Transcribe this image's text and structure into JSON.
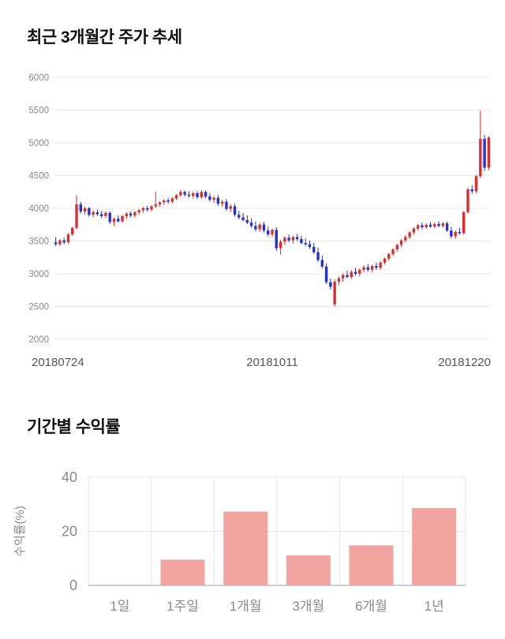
{
  "chart_data": [
    {
      "type": "candlestick",
      "title": "최근 3개월간 주가 추세",
      "x_labels": [
        "20180724",
        "20181011",
        "20181220"
      ],
      "y_ticks": [
        2000,
        2500,
        3000,
        3500,
        4000,
        4500,
        5000,
        5500,
        6000
      ],
      "ylim": [
        2000,
        6000
      ],
      "colors": {
        "up": "#dd2e2e",
        "down": "#2431cf",
        "grid": "#e8e8e8",
        "tick_text": "#8a8a8a",
        "axis_text": "#555555"
      },
      "candles": [
        [
          3480,
          3560,
          3420,
          3450
        ],
        [
          3450,
          3530,
          3420,
          3510
        ],
        [
          3510,
          3550,
          3450,
          3480
        ],
        [
          3480,
          3620,
          3460,
          3600
        ],
        [
          3600,
          3720,
          3580,
          3700
        ],
        [
          3700,
          4200,
          3680,
          4060
        ],
        [
          4060,
          4100,
          3920,
          3950
        ],
        [
          3950,
          4030,
          3900,
          4000
        ],
        [
          4000,
          4020,
          3870,
          3900
        ],
        [
          3900,
          3970,
          3860,
          3940
        ],
        [
          3940,
          3980,
          3880,
          3910
        ],
        [
          3910,
          3960,
          3850,
          3880
        ],
        [
          3880,
          3950,
          3850,
          3930
        ],
        [
          3930,
          3950,
          3760,
          3790
        ],
        [
          3790,
          3860,
          3730,
          3840
        ],
        [
          3840,
          3890,
          3780,
          3800
        ],
        [
          3800,
          3900,
          3780,
          3880
        ],
        [
          3880,
          3940,
          3840,
          3920
        ],
        [
          3920,
          3950,
          3860,
          3890
        ],
        [
          3890,
          3960,
          3860,
          3940
        ],
        [
          3940,
          3990,
          3900,
          3970
        ],
        [
          3970,
          4020,
          3930,
          4000
        ],
        [
          4000,
          4040,
          3950,
          3980
        ],
        [
          3980,
          4050,
          3950,
          4030
        ],
        [
          4030,
          4250,
          4000,
          4060
        ],
        [
          4060,
          4110,
          4020,
          4090
        ],
        [
          4090,
          4140,
          4050,
          4120
        ],
        [
          4120,
          4160,
          4070,
          4100
        ],
        [
          4100,
          4170,
          4070,
          4150
        ],
        [
          4150,
          4220,
          4120,
          4200
        ],
        [
          4200,
          4280,
          4170,
          4250
        ],
        [
          4250,
          4270,
          4180,
          4210
        ],
        [
          4210,
          4260,
          4160,
          4190
        ],
        [
          4190,
          4250,
          4150,
          4230
        ],
        [
          4230,
          4260,
          4140,
          4170
        ],
        [
          4170,
          4280,
          4140,
          4250
        ],
        [
          4250,
          4270,
          4150,
          4180
        ],
        [
          4180,
          4230,
          4100,
          4130
        ],
        [
          4130,
          4190,
          4080,
          4160
        ],
        [
          4160,
          4200,
          4040,
          4070
        ],
        [
          4070,
          4130,
          4020,
          4100
        ],
        [
          4100,
          4140,
          3960,
          3990
        ],
        [
          3990,
          4060,
          3940,
          4030
        ],
        [
          4030,
          4070,
          3870,
          3900
        ],
        [
          3900,
          3960,
          3830,
          3860
        ],
        [
          3860,
          3930,
          3800,
          3820
        ],
        [
          3820,
          3890,
          3760,
          3780
        ],
        [
          3780,
          3850,
          3700,
          3730
        ],
        [
          3730,
          3800,
          3650,
          3680
        ],
        [
          3680,
          3770,
          3640,
          3750
        ],
        [
          3750,
          3790,
          3630,
          3660
        ],
        [
          3660,
          3720,
          3570,
          3600
        ],
        [
          3600,
          3690,
          3560,
          3670
        ],
        [
          3670,
          3710,
          3350,
          3390
        ],
        [
          3390,
          3520,
          3290,
          3490
        ],
        [
          3490,
          3570,
          3440,
          3550
        ],
        [
          3550,
          3600,
          3480,
          3510
        ],
        [
          3510,
          3580,
          3460,
          3560
        ],
        [
          3560,
          3610,
          3500,
          3530
        ],
        [
          3530,
          3580,
          3450,
          3470
        ],
        [
          3470,
          3540,
          3420,
          3450
        ],
        [
          3450,
          3510,
          3380,
          3410
        ],
        [
          3410,
          3470,
          3300,
          3330
        ],
        [
          3330,
          3400,
          3180,
          3210
        ],
        [
          3210,
          3280,
          3080,
          3110
        ],
        [
          3110,
          3160,
          2840,
          2870
        ],
        [
          2870,
          2930,
          2760,
          2800
        ],
        [
          2530,
          2910,
          2500,
          2880
        ],
        [
          2880,
          2960,
          2820,
          2930
        ],
        [
          2930,
          3010,
          2880,
          2980
        ],
        [
          2980,
          3050,
          2930,
          2950
        ],
        [
          2950,
          3060,
          2920,
          3030
        ],
        [
          3030,
          3090,
          2970,
          3000
        ],
        [
          3000,
          3080,
          2960,
          3060
        ],
        [
          3060,
          3130,
          3020,
          3100
        ],
        [
          3100,
          3150,
          3030,
          3060
        ],
        [
          3060,
          3140,
          3020,
          3120
        ],
        [
          3120,
          3170,
          3060,
          3090
        ],
        [
          3090,
          3190,
          3060,
          3170
        ],
        [
          3170,
          3250,
          3140,
          3230
        ],
        [
          3230,
          3320,
          3200,
          3300
        ],
        [
          3300,
          3390,
          3270,
          3370
        ],
        [
          3370,
          3460,
          3340,
          3440
        ],
        [
          3440,
          3530,
          3410,
          3510
        ],
        [
          3510,
          3590,
          3480,
          3560
        ],
        [
          3560,
          3650,
          3530,
          3630
        ],
        [
          3630,
          3710,
          3600,
          3690
        ],
        [
          3690,
          3760,
          3660,
          3740
        ],
        [
          3740,
          3780,
          3680,
          3710
        ],
        [
          3710,
          3770,
          3680,
          3750
        ],
        [
          3750,
          3790,
          3700,
          3720
        ],
        [
          3720,
          3780,
          3690,
          3760
        ],
        [
          3760,
          3800,
          3710,
          3730
        ],
        [
          3730,
          3790,
          3700,
          3770
        ],
        [
          3770,
          3800,
          3640,
          3660
        ],
        [
          3660,
          3720,
          3540,
          3570
        ],
        [
          3570,
          3660,
          3530,
          3640
        ],
        [
          3640,
          3700,
          3600,
          3620
        ],
        [
          3620,
          3960,
          3600,
          3940
        ],
        [
          3940,
          4320,
          3920,
          4290
        ],
        [
          4290,
          4350,
          4220,
          4260
        ],
        [
          4260,
          4510,
          4230,
          4490
        ],
        [
          4490,
          5490,
          4460,
          5060
        ],
        [
          5060,
          5120,
          4570,
          4620
        ],
        [
          4620,
          5100,
          4580,
          5080
        ]
      ]
    },
    {
      "type": "bar",
      "title": "기간별 수익률",
      "categories": [
        "1일",
        "1주일",
        "1개월",
        "3개월",
        "6개월",
        "1년"
      ],
      "values": [
        0,
        9.5,
        27.3,
        11.1,
        14.8,
        28.6
      ],
      "ylabel": "수익률(%)",
      "y_ticks": [
        0,
        20,
        40
      ],
      "ylim": [
        0,
        40
      ],
      "bar_color": "#f2a4a1",
      "colors": {
        "grid": "#e6e6e6",
        "axis_line": "#b0b0b0",
        "tick_text": "#8a8a8a",
        "category_text": "#8a8a8a"
      },
      "grid": true,
      "legend": "none"
    }
  ]
}
